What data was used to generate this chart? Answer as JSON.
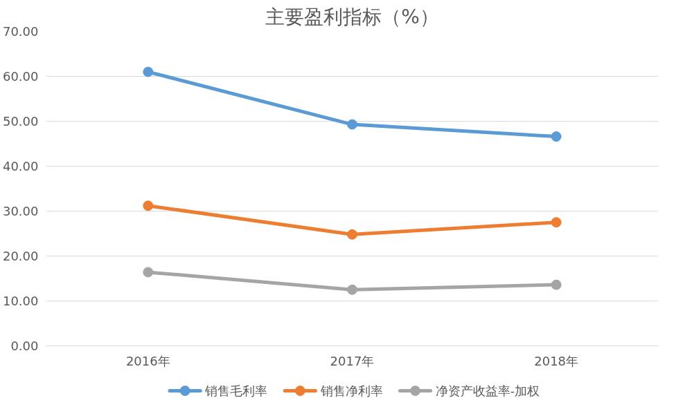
{
  "chart_data": {
    "type": "line",
    "title": "主要盈利指标（%）",
    "categories": [
      "2016年",
      "2017年",
      "2018年"
    ],
    "series": [
      {
        "name": "销售毛利率",
        "color": "#5b9bd5",
        "values": [
          61.0,
          49.3,
          46.6
        ]
      },
      {
        "name": "销售净利率",
        "color": "#ed7d31",
        "values": [
          31.2,
          24.8,
          27.5
        ]
      },
      {
        "name": "净资产收益率-加权",
        "color": "#a5a5a5",
        "values": [
          16.4,
          12.5,
          13.6
        ]
      }
    ],
    "ylim": [
      0,
      70
    ],
    "yticks": [
      {
        "value": 0,
        "label": "0.00"
      },
      {
        "value": 10,
        "label": "10.00"
      },
      {
        "value": 20,
        "label": "20.00"
      },
      {
        "value": 30,
        "label": "30.00"
      },
      {
        "value": 40,
        "label": "40.00"
      },
      {
        "value": 50,
        "label": "50.00"
      },
      {
        "value": 60,
        "label": "60.00"
      },
      {
        "value": 70,
        "label": "70.00"
      }
    ],
    "grid": "y",
    "legend": "bottom",
    "marker": "circle",
    "line_style": "solid"
  }
}
